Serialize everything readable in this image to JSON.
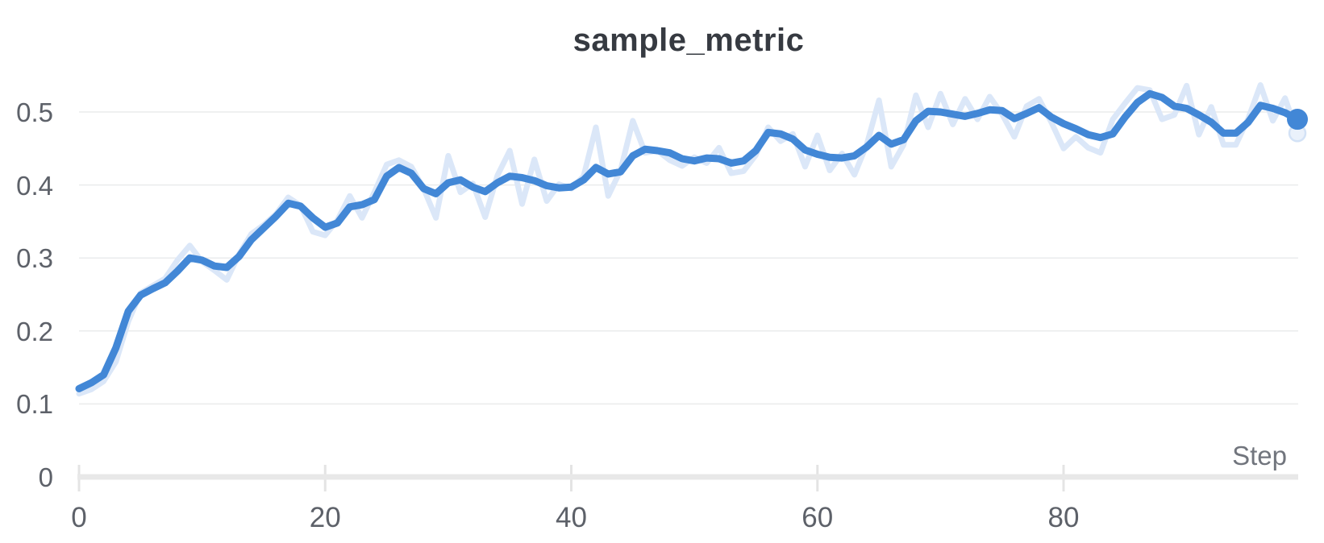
{
  "panel": {
    "type": "wandb-line-panel"
  },
  "style": {
    "background": "#ffffff",
    "accent": "#4287d6",
    "raw_series_color": "#dbe7f8",
    "raw_endpoint_fill": "#eaf1fb",
    "raw_endpoint_stroke": "#d3e2f6",
    "grid_color": "#eaebec",
    "axis_bar_color": "#e8e8e8",
    "tick_mark_color": "#e4e4e4",
    "tick_label_color": "#5d6169",
    "axis_title_color": "#71757d",
    "title_color": "#363a41"
  },
  "chart_data": {
    "type": "line",
    "title": "sample_metric",
    "xlabel": "Step",
    "ylabel": "",
    "xlim": [
      0,
      99
    ],
    "ylim": [
      0,
      0.56
    ],
    "grid": "horizontal",
    "legend": "none",
    "x_ticks": [
      0,
      20,
      40,
      60,
      80
    ],
    "x_tick_labels": [
      "0",
      "20",
      "40",
      "60",
      "80"
    ],
    "y_ticks": [
      0,
      0.1,
      0.2,
      0.3,
      0.4,
      0.5
    ],
    "y_tick_labels": [
      "0",
      "0.1",
      "0.2",
      "0.3",
      "0.4",
      "0.5"
    ],
    "x": [
      0,
      1,
      2,
      3,
      4,
      5,
      6,
      7,
      8,
      9,
      10,
      11,
      12,
      13,
      14,
      15,
      16,
      17,
      18,
      19,
      20,
      21,
      22,
      23,
      24,
      25,
      26,
      27,
      28,
      29,
      30,
      31,
      32,
      33,
      34,
      35,
      36,
      37,
      38,
      39,
      40,
      41,
      42,
      43,
      44,
      45,
      46,
      47,
      48,
      49,
      50,
      51,
      52,
      53,
      54,
      55,
      56,
      57,
      58,
      59,
      60,
      61,
      62,
      63,
      64,
      65,
      66,
      67,
      68,
      69,
      70,
      71,
      72,
      73,
      74,
      75,
      76,
      77,
      78,
      79,
      80,
      81,
      82,
      83,
      84,
      85,
      86,
      87,
      88,
      89,
      90,
      91,
      92,
      93,
      94,
      95,
      96,
      97,
      98,
      99
    ],
    "series": [
      {
        "name": "raw",
        "role": "original-unsmoothed",
        "color": "#dbe7f8",
        "stroke_width": 7,
        "endpoint_value": 0.471,
        "values": [
          0.114,
          0.12,
          0.131,
          0.158,
          0.213,
          0.252,
          0.262,
          0.272,
          0.297,
          0.317,
          0.295,
          0.283,
          0.27,
          0.305,
          0.333,
          0.345,
          0.36,
          0.383,
          0.372,
          0.336,
          0.331,
          0.352,
          0.385,
          0.355,
          0.39,
          0.428,
          0.434,
          0.425,
          0.395,
          0.355,
          0.44,
          0.39,
          0.402,
          0.356,
          0.413,
          0.447,
          0.374,
          0.435,
          0.378,
          0.401,
          0.395,
          0.412,
          0.479,
          0.385,
          0.42,
          0.488,
          0.444,
          0.447,
          0.434,
          0.426,
          0.438,
          0.43,
          0.451,
          0.416,
          0.419,
          0.441,
          0.479,
          0.46,
          0.47,
          0.425,
          0.468,
          0.42,
          0.443,
          0.414,
          0.455,
          0.516,
          0.425,
          0.455,
          0.523,
          0.479,
          0.525,
          0.483,
          0.518,
          0.49,
          0.521,
          0.497,
          0.466,
          0.508,
          0.518,
          0.486,
          0.45,
          0.466,
          0.451,
          0.444,
          0.49,
          0.512,
          0.533,
          0.53,
          0.49,
          0.496,
          0.536,
          0.469,
          0.507,
          0.455,
          0.455,
          0.491,
          0.537,
          0.488,
          0.519,
          0.471
        ]
      },
      {
        "name": "smoothed",
        "role": "smoothed",
        "color": "#4287d6",
        "stroke_width": 9,
        "endpoint_value": 0.49,
        "values": [
          0.121,
          0.129,
          0.14,
          0.177,
          0.227,
          0.249,
          0.258,
          0.266,
          0.282,
          0.3,
          0.297,
          0.289,
          0.287,
          0.302,
          0.325,
          0.341,
          0.357,
          0.375,
          0.371,
          0.355,
          0.342,
          0.348,
          0.37,
          0.373,
          0.38,
          0.412,
          0.424,
          0.416,
          0.395,
          0.388,
          0.403,
          0.407,
          0.397,
          0.391,
          0.403,
          0.412,
          0.41,
          0.406,
          0.399,
          0.396,
          0.397,
          0.407,
          0.424,
          0.415,
          0.418,
          0.44,
          0.449,
          0.447,
          0.444,
          0.436,
          0.433,
          0.437,
          0.436,
          0.43,
          0.433,
          0.447,
          0.472,
          0.47,
          0.463,
          0.448,
          0.442,
          0.438,
          0.437,
          0.44,
          0.452,
          0.468,
          0.456,
          0.462,
          0.488,
          0.501,
          0.5,
          0.497,
          0.494,
          0.498,
          0.503,
          0.502,
          0.491,
          0.498,
          0.506,
          0.493,
          0.484,
          0.477,
          0.469,
          0.465,
          0.47,
          0.493,
          0.513,
          0.525,
          0.52,
          0.508,
          0.505,
          0.496,
          0.486,
          0.471,
          0.471,
          0.486,
          0.509,
          0.505,
          0.499,
          0.49
        ]
      }
    ]
  }
}
